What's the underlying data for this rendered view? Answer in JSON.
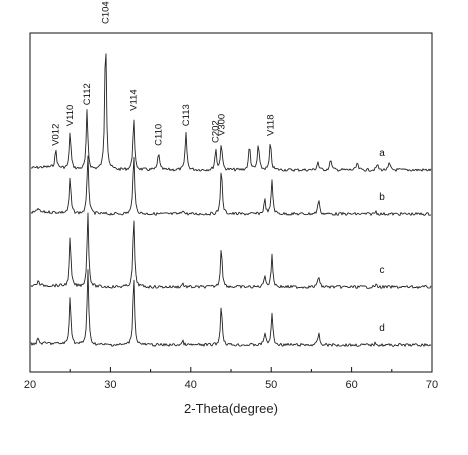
{
  "chart_data": {
    "type": "line",
    "title": "",
    "xlabel": "2-Theta(degree)",
    "ylabel": "",
    "xlim": [
      20,
      70
    ],
    "x_ticks": [
      20,
      30,
      40,
      50,
      60,
      70
    ],
    "y_ticks_shown": false,
    "grid": false,
    "baseline_offsets": [
      0,
      1,
      2,
      3
    ],
    "series": [
      {
        "name": "a",
        "peaks": [
          {
            "x": 23.2,
            "h": 0.13
          },
          {
            "x": 25.0,
            "h": 0.27
          },
          {
            "x": 27.1,
            "h": 0.42
          },
          {
            "x": 29.4,
            "h": 1.0
          },
          {
            "x": 32.9,
            "h": 0.38
          },
          {
            "x": 36.0,
            "h": 0.13
          },
          {
            "x": 39.4,
            "h": 0.27
          },
          {
            "x": 43.1,
            "h": 0.15
          },
          {
            "x": 43.8,
            "h": 0.2
          },
          {
            "x": 47.3,
            "h": 0.18
          },
          {
            "x": 48.4,
            "h": 0.19
          },
          {
            "x": 49.9,
            "h": 0.2
          },
          {
            "x": 55.8,
            "h": 0.06
          },
          {
            "x": 57.4,
            "h": 0.08
          },
          {
            "x": 60.7,
            "h": 0.05
          },
          {
            "x": 63.2,
            "h": 0.04
          },
          {
            "x": 64.7,
            "h": 0.05
          }
        ]
      },
      {
        "name": "b",
        "peaks": [
          {
            "x": 21.0,
            "h": 0.05
          },
          {
            "x": 25.0,
            "h": 0.4
          },
          {
            "x": 27.2,
            "h": 0.66
          },
          {
            "x": 32.9,
            "h": 0.7
          },
          {
            "x": 39.0,
            "h": 0.05
          },
          {
            "x": 43.8,
            "h": 0.53
          },
          {
            "x": 49.2,
            "h": 0.16
          },
          {
            "x": 50.1,
            "h": 0.38
          },
          {
            "x": 55.9,
            "h": 0.17
          },
          {
            "x": 63.0,
            "h": 0.03
          }
        ]
      },
      {
        "name": "c",
        "peaks": [
          {
            "x": 21.0,
            "h": 0.07
          },
          {
            "x": 25.0,
            "h": 0.66
          },
          {
            "x": 27.2,
            "h": 1.0
          },
          {
            "x": 32.9,
            "h": 0.96
          },
          {
            "x": 39.0,
            "h": 0.05
          },
          {
            "x": 43.8,
            "h": 0.56
          },
          {
            "x": 49.2,
            "h": 0.17
          },
          {
            "x": 50.1,
            "h": 0.43
          },
          {
            "x": 55.9,
            "h": 0.16
          },
          {
            "x": 63.0,
            "h": 0.03
          }
        ]
      },
      {
        "name": "d",
        "peaks": [
          {
            "x": 21.0,
            "h": 0.07
          },
          {
            "x": 25.0,
            "h": 0.66
          },
          {
            "x": 27.2,
            "h": 1.0
          },
          {
            "x": 32.9,
            "h": 0.96
          },
          {
            "x": 39.0,
            "h": 0.05
          },
          {
            "x": 43.8,
            "h": 0.56
          },
          {
            "x": 49.2,
            "h": 0.17
          },
          {
            "x": 50.1,
            "h": 0.43
          },
          {
            "x": 55.9,
            "h": 0.16
          },
          {
            "x": 63.0,
            "h": 0.03
          }
        ]
      }
    ],
    "annotations": [
      {
        "text": "V012",
        "x": 23.2
      },
      {
        "text": "V110",
        "x": 25.0
      },
      {
        "text": "C112",
        "x": 27.1
      },
      {
        "text": "C104",
        "x": 29.4
      },
      {
        "text": "V114",
        "x": 32.9
      },
      {
        "text": "C110",
        "x": 36.0
      },
      {
        "text": "C113",
        "x": 39.4
      },
      {
        "text": "C202",
        "x": 43.1
      },
      {
        "text": "V300",
        "x": 43.8
      },
      {
        "text": "V118",
        "x": 49.9
      }
    ]
  }
}
